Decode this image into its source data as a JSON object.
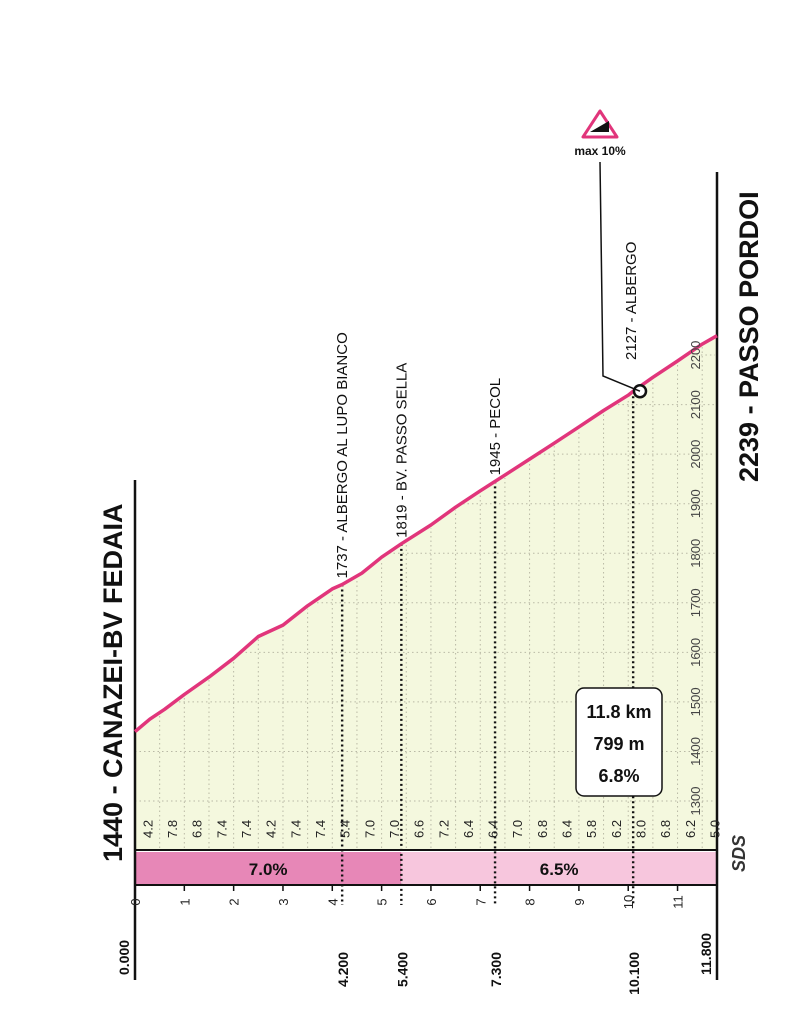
{
  "chart_data": {
    "type": "area",
    "start_label": "1440 - CANAZEI-BV FEDAIA",
    "finish_label": "2239 - PASSO PORDOI",
    "distance_ticks": [
      "0",
      "1",
      "2",
      "3",
      "4",
      "5",
      "6",
      "7",
      "8",
      "9",
      "10",
      "11"
    ],
    "altitude_ticks": [
      "1300",
      "1400",
      "1500",
      "1600",
      "1700",
      "1800",
      "1900",
      "2000",
      "2100",
      "2200"
    ],
    "x": [
      0,
      0.3,
      0.6,
      1,
      1.5,
      2,
      2.5,
      3,
      3.5,
      4,
      4.2,
      4.6,
      5,
      5.4,
      6,
      6.5,
      7,
      7.3,
      8,
      8.5,
      9,
      9.5,
      10,
      10.1,
      10.5,
      11,
      11.5,
      11.8
    ],
    "y": [
      1440,
      1465,
      1485,
      1515,
      1550,
      1588,
      1632,
      1655,
      1694,
      1728,
      1737,
      1760,
      1792,
      1819,
      1857,
      1893,
      1926,
      1945,
      1990,
      2022,
      2055,
      2088,
      2119,
      2127,
      2155,
      2188,
      2222,
      2239
    ],
    "xlim": [
      0,
      11.8
    ],
    "ylim": [
      1300,
      2200
    ],
    "gradients": [
      "4.2",
      "7.8",
      "6.8",
      "7.4",
      "7.4",
      "4.2",
      "7.4",
      "7.4",
      "5.4",
      "7.0",
      "7.0",
      "6.6",
      "7.2",
      "6.4",
      "6.4",
      "7.0",
      "6.8",
      "6.4",
      "5.8",
      "6.2",
      "8.0",
      "6.8",
      "6.2",
      "5.0"
    ],
    "sectors": [
      {
        "label": "7.0%",
        "from": 0,
        "to": 5.4,
        "color": "#e787b7"
      },
      {
        "label": "6.5%",
        "from": 5.4,
        "to": 11.8,
        "color": "#f7c6dd"
      }
    ],
    "waypoints": [
      {
        "label": "1737 - ALBERGO AL LUPO BIANCO",
        "x": 4.2,
        "alt": 1737,
        "km_label": "4.200"
      },
      {
        "label": "1819 - BV. PASSO SELLA",
        "x": 5.4,
        "alt": 1819,
        "km_label": "5.400"
      },
      {
        "label": "1945 - PECOL",
        "x": 7.3,
        "alt": 1945,
        "km_label": "7.300"
      },
      {
        "label": "2127 - ALBERGO",
        "x": 10.1,
        "alt": 2127,
        "km_label": "10.100"
      }
    ],
    "start_km_label": "0.000",
    "finish_km_label": "11.800",
    "summary": {
      "distance": "11.8 km",
      "gain": "799 m",
      "avg": "6.8%"
    },
    "max_gradient": "max 10%",
    "max_gradient_km": 10.1,
    "logo": "SDS",
    "colors": {
      "fill": "#f4f8de",
      "line": "#e1357b",
      "grid": "#b9b9a5"
    }
  }
}
